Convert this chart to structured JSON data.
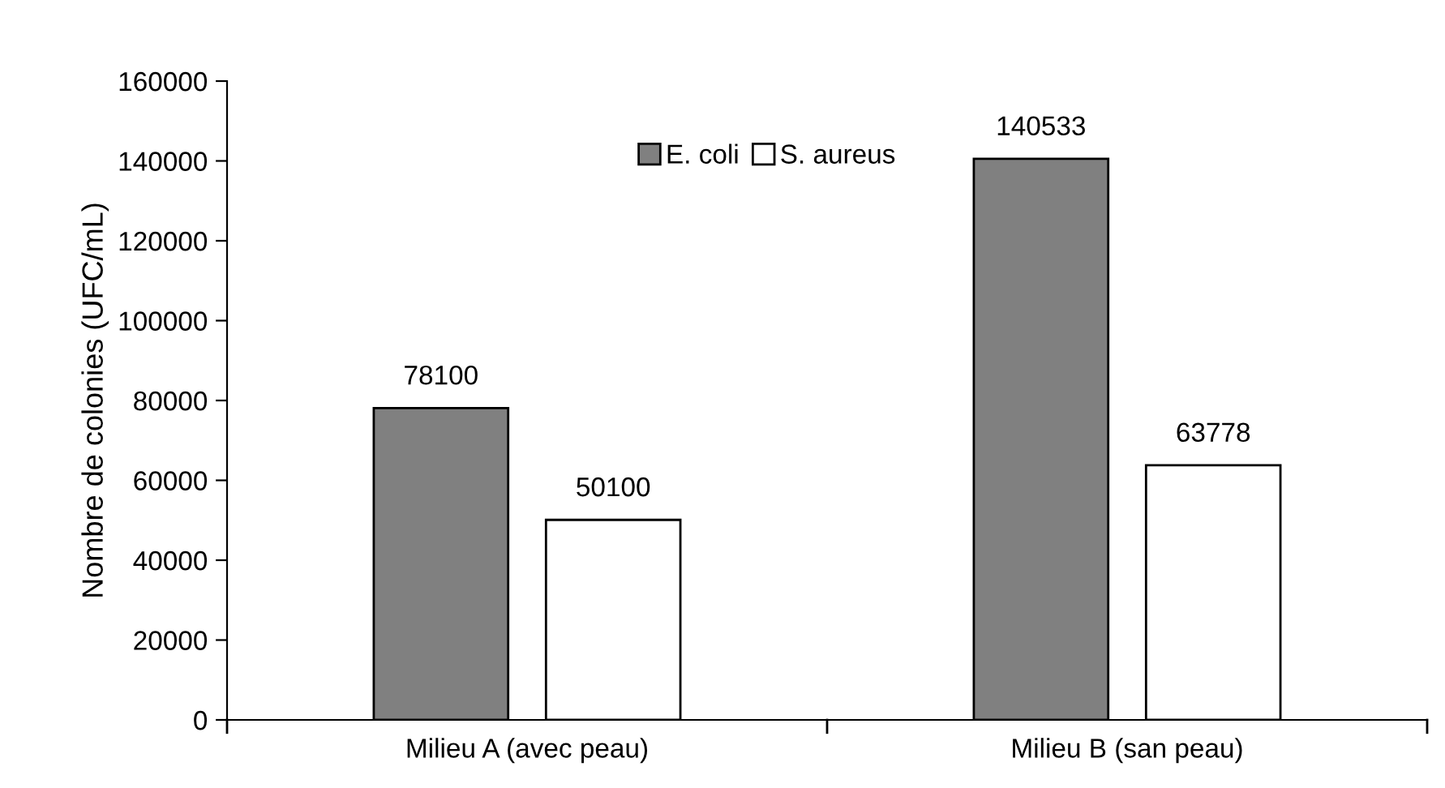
{
  "chart_data": {
    "type": "bar",
    "ylabel": "Nombre de colonies (UFC/mL)",
    "categories": [
      "Milieu A (avec peau)",
      "Milieu B (san peau)"
    ],
    "series": [
      {
        "name": "E. coli",
        "color": "#808080",
        "values": [
          78100,
          140533
        ]
      },
      {
        "name": "S. aureus",
        "color": "#ffffff",
        "values": [
          50100,
          63778
        ]
      }
    ],
    "ylim": [
      0,
      160000
    ],
    "yticks": [
      0,
      20000,
      40000,
      60000,
      80000,
      100000,
      120000,
      140000,
      160000
    ],
    "data_labels": true,
    "grid": false,
    "legend": "top"
  }
}
